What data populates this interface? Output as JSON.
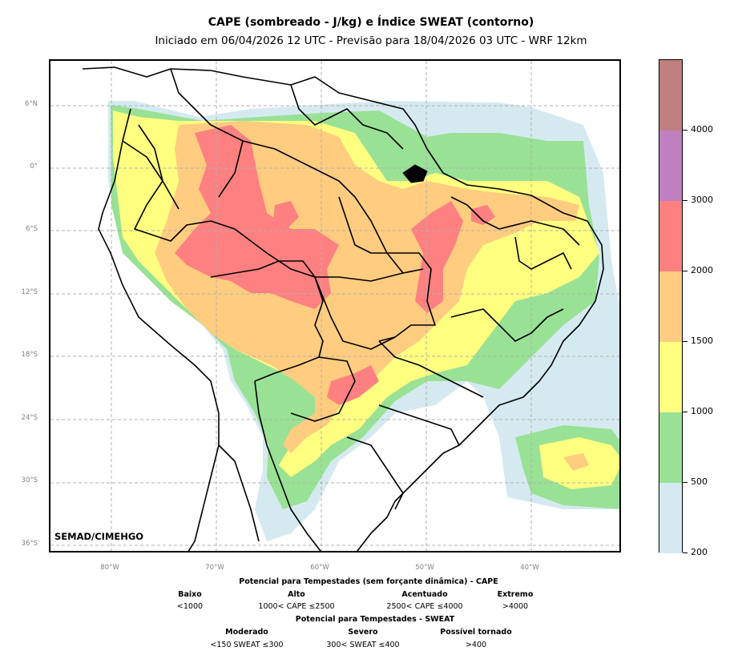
{
  "header": {
    "title": "CAPE (sombreado - J/kg) e Índice SWEAT (contorno)",
    "subtitle": "Iniciado em 06/04/2026 12 UTC - Previsão para 18/04/2026 03 UTC - WRF 12km"
  },
  "map": {
    "credit": "SEMAD/CIMEHGO",
    "lat_labels": [
      "6°N",
      "0°",
      "6°S",
      "12°S",
      "18°S",
      "24°S",
      "30°S",
      "36°S"
    ],
    "lon_labels": [
      "80°W",
      "70°W",
      "60°W",
      "50°W",
      "40°W"
    ],
    "extent": {
      "lon_min": -86.0,
      "lon_max": -31.5,
      "lat_min": -37.0,
      "lat_max": 10.0
    },
    "gridlines": true
  },
  "colorbar": {
    "ticks": [
      "200",
      "500",
      "1000",
      "1500",
      "2000",
      "3000",
      "4000"
    ],
    "colors": [
      "#d5eaf0",
      "#99e195",
      "#ffff80",
      "#ffcc80",
      "#ff8080",
      "#c080c0",
      "#c08080"
    ]
  },
  "legend": {
    "cape_title": "Potencial para Tempestades (sem forçante dinâmica) - CAPE",
    "cape_categories": [
      {
        "name": "Baixo",
        "range": "<1000"
      },
      {
        "name": "Alto",
        "range": "1000< CAPE ≤2500"
      },
      {
        "name": "Acentuado",
        "range": "2500< CAPE ≤4000"
      },
      {
        "name": "Extremo",
        "range": ">4000"
      }
    ],
    "sweat_title": "Potencial para Tempestades - SWEAT",
    "sweat_categories": [
      {
        "name": "Moderado",
        "range": "<150 SWEAT ≤300"
      },
      {
        "name": "Severo",
        "range": "300< SWEAT ≤400"
      },
      {
        "name": "Possível tornado",
        "range": ">400"
      }
    ]
  }
}
